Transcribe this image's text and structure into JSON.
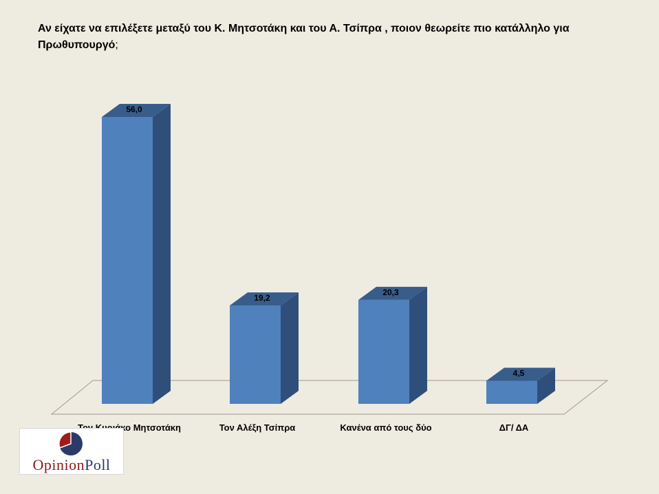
{
  "chart_data": {
    "type": "bar",
    "title": "Αν είχατε να επιλέξετε μεταξύ του Κ. Μητσοτάκη και του Α. Τσίπρα , ποιον θεωρείτε πιο κατάλληλο για Πρωθυπουργό",
    "title_suffix": ";",
    "categories": [
      "Τον Κυριάκο Μητσοτάκη",
      "Τον Αλέξη Τσίπρα",
      "Κανένα από τους δύο",
      "ΔΓ/ ΔΑ"
    ],
    "values": [
      56.0,
      19.2,
      20.3,
      4.5
    ],
    "value_labels": [
      "56,0",
      "19,2",
      "20,3",
      "4,5"
    ],
    "xlabel": "",
    "ylabel": "",
    "ylim": [
      0,
      56
    ],
    "grid": false,
    "legend": "none",
    "colors": {
      "bar_front": "#4f81bd",
      "bar_side": "#2f4f7a",
      "bar_top": "#385d8a",
      "floor_line": "#a09a8a",
      "background": "#eeebe0"
    }
  },
  "logo": {
    "text_part1": "Opinion",
    "text_part2": "Poll",
    "colors": {
      "red": "#8b1a1a",
      "navy": "#2b3a6b"
    }
  }
}
